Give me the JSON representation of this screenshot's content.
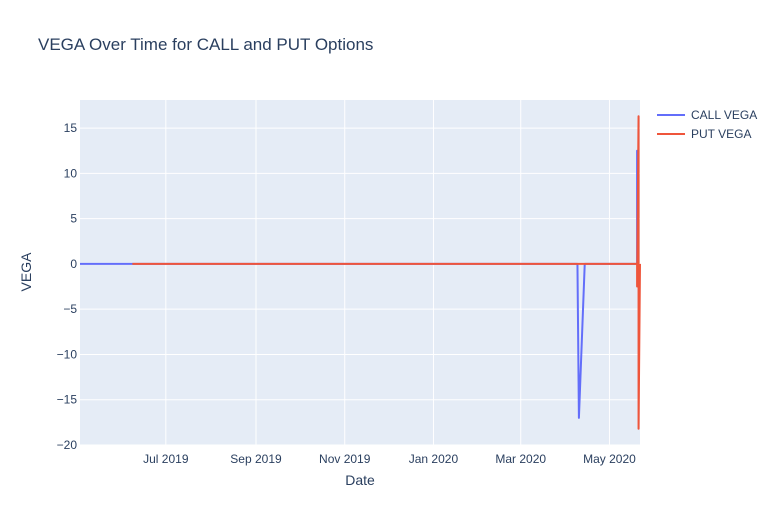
{
  "chart_data": {
    "type": "line",
    "title": "VEGA Over Time for CALL and PUT Options",
    "xlabel": "Date",
    "ylabel": "VEGA",
    "x_range": [
      "2019-05-03",
      "2020-05-22"
    ],
    "ylim": [
      -20,
      18.1
    ],
    "x_ticks": [
      {
        "date": "2019-07-01",
        "label": "Jul 2019"
      },
      {
        "date": "2019-09-01",
        "label": "Sep 2019"
      },
      {
        "date": "2019-11-01",
        "label": "Nov 2019"
      },
      {
        "date": "2020-01-01",
        "label": "Jan 2020"
      },
      {
        "date": "2020-03-01",
        "label": "Mar 2020"
      },
      {
        "date": "2020-05-01",
        "label": "May 2020"
      }
    ],
    "y_ticks": [
      {
        "value": 15,
        "label": "15"
      },
      {
        "value": 10,
        "label": "10"
      },
      {
        "value": 5,
        "label": "5"
      },
      {
        "value": 0,
        "label": "0"
      },
      {
        "value": -5,
        "label": "−5"
      },
      {
        "value": -10,
        "label": "−10"
      },
      {
        "value": -15,
        "label": "−15"
      },
      {
        "value": -20,
        "label": "−20"
      }
    ],
    "grid": true,
    "legend_position": "top-right",
    "series": [
      {
        "name": "CALL VEGA",
        "color": "#636efa",
        "points": [
          {
            "x": "2019-05-03",
            "y": 0
          },
          {
            "x": "2020-04-09",
            "y": 0
          },
          {
            "x": "2020-04-10",
            "y": -17.0
          },
          {
            "x": "2020-04-14",
            "y": 0
          },
          {
            "x": "2020-05-20",
            "y": 0
          },
          {
            "x": "2020-05-20",
            "y": 12.5
          },
          {
            "x": "2020-05-21",
            "y": 0
          }
        ]
      },
      {
        "name": "PUT VEGA",
        "color": "#ef553b",
        "points": [
          {
            "x": "2019-06-08",
            "y": 0
          },
          {
            "x": "2020-05-20",
            "y": 0
          },
          {
            "x": "2020-05-20",
            "y": -2.5
          },
          {
            "x": "2020-05-21",
            "y": 16.3
          },
          {
            "x": "2020-05-21",
            "y": -18.2
          },
          {
            "x": "2020-05-22",
            "y": 0
          }
        ]
      }
    ]
  }
}
